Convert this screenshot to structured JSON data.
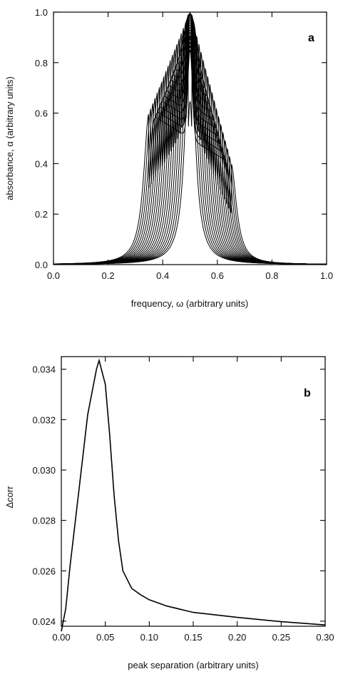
{
  "chart_data": [
    {
      "type": "line",
      "panel_label": "a",
      "xlabel": "frequency, ω (arbitrary units)",
      "ylabel": "absorbance, α (arbitrary units)",
      "xlim": [
        0.0,
        1.0
      ],
      "ylim": [
        0.0,
        1.0
      ],
      "x_ticks": [
        "0.0",
        "0.2",
        "0.4",
        "0.6",
        "0.8",
        "1.0"
      ],
      "y_ticks": [
        "0.0",
        "0.2",
        "0.4",
        "0.6",
        "0.8",
        "1.0"
      ],
      "family": {
        "center": 0.5,
        "peak_height_at_zero_separation": 1.0,
        "separation_range": [
          0.0,
          0.3
        ],
        "count": 20,
        "plateau_height_at_max_separation": [
          0.6,
          0.4
        ]
      },
      "grid": false,
      "legend": "none",
      "line_color": "#000000"
    },
    {
      "type": "line",
      "panel_label": "b",
      "xlabel": "peak separation (arbitrary units)",
      "ylabel": "Δcorr",
      "xlim": [
        0.0,
        0.3
      ],
      "ylim": [
        0.0238,
        0.0345
      ],
      "x_ticks": [
        "0.00",
        "0.05",
        "0.10",
        "0.15",
        "0.20",
        "0.25",
        "0.30"
      ],
      "y_ticks": [
        "0.024",
        "0.026",
        "0.028",
        "0.030",
        "0.032",
        "0.034"
      ],
      "series": [
        {
          "x": [
            0.0,
            0.005,
            0.01,
            0.02,
            0.03,
            0.04,
            0.043,
            0.05,
            0.055,
            0.06,
            0.065,
            0.07,
            0.08,
            0.09,
            0.1,
            0.12,
            0.15,
            0.2,
            0.25,
            0.3
          ],
          "y": [
            0.0236,
            0.0245,
            0.0262,
            0.0292,
            0.0322,
            0.034,
            0.03435,
            0.0334,
            0.0314,
            0.029,
            0.0272,
            0.026,
            0.0253,
            0.02505,
            0.02485,
            0.0246,
            0.02435,
            0.02415,
            0.02398,
            0.02385
          ]
        }
      ],
      "grid": false,
      "legend": "none",
      "line_color": "#000000"
    }
  ]
}
